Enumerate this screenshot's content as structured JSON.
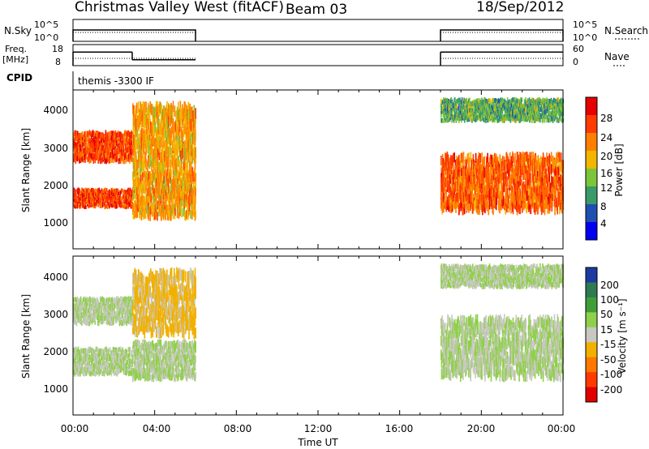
{
  "header": {
    "title": "Christmas Valley West (fitACF)",
    "beam": "Beam 03",
    "date": "18/Sep/2012"
  },
  "sky_panel": {
    "left_label": "N.Sky",
    "left_ticks": [
      "10^5",
      "10^0"
    ],
    "right_ticks": [
      "10^5",
      "10^0"
    ],
    "right_label": "N.Search"
  },
  "freq_panel": {
    "left_label_1": "Freq.",
    "left_label_2": "[MHz]",
    "left_ticks": [
      "18",
      "8"
    ],
    "right_ticks": [
      "60",
      "0"
    ],
    "right_label": "Nave"
  },
  "cpid_panel": {
    "label": "CPID",
    "value": "themis -3300 IF"
  },
  "power_panel": {
    "ylabel": "Slant Range [km]",
    "yticks": [
      "4000",
      "3000",
      "2000",
      "1000"
    ],
    "colorbar_label": "Power [dB]",
    "colorbar_ticks": [
      "28",
      "24",
      "20",
      "16",
      "12",
      "8",
      "4"
    ],
    "colors": [
      "#e60000",
      "#ff3b00",
      "#ff8000",
      "#f2b600",
      "#7cc43a",
      "#3a9a6a",
      "#1f4fb0",
      "#0000f0"
    ]
  },
  "velocity_panel": {
    "ylabel": "Slant Range [km]",
    "yticks": [
      "4000",
      "3000",
      "2000",
      "1000"
    ],
    "colorbar_label": "Velocity [m s⁻¹]",
    "colorbar_ticks": [
      "200",
      "100",
      "50",
      "15",
      "-15",
      "-50",
      "-100",
      "-200"
    ],
    "colors": [
      "#1c3aa0",
      "#2f7a50",
      "#3f9e3a",
      "#8fd04a",
      "#c8c8c0",
      "#f2b000",
      "#ff7800",
      "#ff3a00",
      "#e00000"
    ]
  },
  "xaxis": {
    "ticks": [
      "00:00",
      "04:00",
      "08:00",
      "12:00",
      "16:00",
      "20:00",
      "00:00"
    ],
    "label": "Time UT"
  },
  "chart_data": {
    "type": "heatmap",
    "x_unit": "hours UT",
    "x_range": [
      0,
      24
    ],
    "y_range_km": [
      200,
      4500
    ],
    "data_intervals_hours": [
      [
        0,
        6
      ],
      [
        18,
        24
      ]
    ],
    "frequency_mhz": [
      {
        "from": 0,
        "to": 2.9,
        "value": 15
      },
      {
        "from": 2.9,
        "to": 6,
        "value": 11
      },
      {
        "from": 18,
        "to": 24,
        "value": 15
      }
    ],
    "power_bands": [
      {
        "t_start": 0.0,
        "t_end": 2.9,
        "range_km": [
          1400,
          1900
        ],
        "power_db": 26
      },
      {
        "t_start": 0.0,
        "t_end": 2.9,
        "range_km": [
          2700,
          3500
        ],
        "power_db": 26
      },
      {
        "t_start": 2.9,
        "t_end": 6.0,
        "range_km": [
          1200,
          2500
        ],
        "power_db": 20
      },
      {
        "t_start": 2.9,
        "t_end": 6.0,
        "range_km": [
          2600,
          4300
        ],
        "power_db": 20
      },
      {
        "t_start": 18.0,
        "t_end": 24.0,
        "range_km": [
          1400,
          2900
        ],
        "power_db": 24
      },
      {
        "t_start": 18.0,
        "t_end": 24.0,
        "range_km": [
          3800,
          4400
        ],
        "power_db": 12
      }
    ],
    "velocity_bands": [
      {
        "t_start": 0.0,
        "t_end": 2.9,
        "range_km": [
          1400,
          2100
        ],
        "velocity": 0
      },
      {
        "t_start": 0.0,
        "t_end": 2.9,
        "range_km": [
          2800,
          3500
        ],
        "velocity": 0
      },
      {
        "t_start": 2.9,
        "t_end": 6.0,
        "range_km": [
          1300,
          2300
        ],
        "velocity": 0
      },
      {
        "t_start": 2.9,
        "t_end": 6.0,
        "range_km": [
          2600,
          4300
        ],
        "velocity": -40
      },
      {
        "t_start": 18.0,
        "t_end": 24.0,
        "range_km": [
          1400,
          3000
        ],
        "velocity": 0
      },
      {
        "t_start": 18.0,
        "t_end": 24.0,
        "range_km": [
          3800,
          4400
        ],
        "velocity": 0
      }
    ]
  }
}
